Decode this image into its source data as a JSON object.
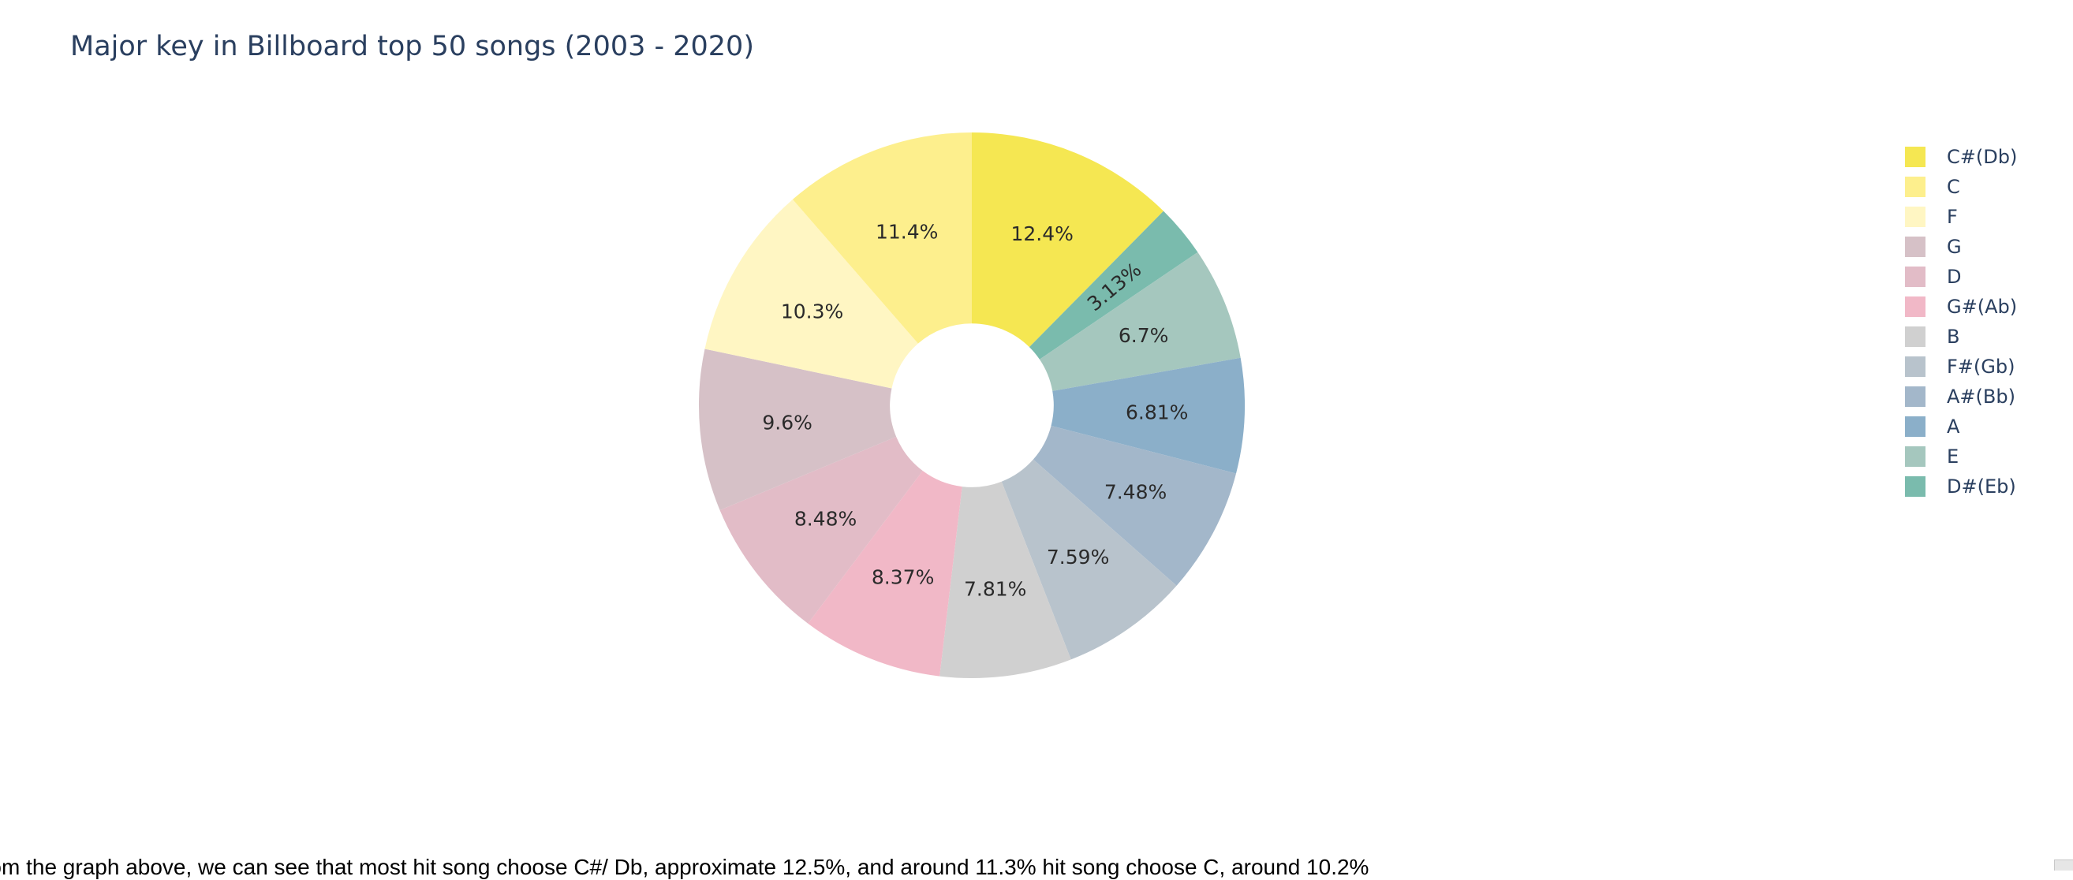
{
  "chart_data": {
    "type": "pie",
    "title": "Major key in Billboard top 50 songs (2003 - 2020)",
    "hole": 0.3,
    "legend_position": "right",
    "slices": [
      {
        "label": "C#(Db)",
        "value": 12.4,
        "text": "12.4%",
        "color": "#f5e752"
      },
      {
        "label": "D#(Eb)",
        "value": 3.13,
        "text": "3.13%",
        "color": "#7abbad"
      },
      {
        "label": "E",
        "value": 6.7,
        "text": "6.7%",
        "color": "#a5c7be"
      },
      {
        "label": "A",
        "value": 6.81,
        "text": "6.81%",
        "color": "#8bafc9"
      },
      {
        "label": "A#(Bb)",
        "value": 7.48,
        "text": "7.48%",
        "color": "#a3b7ca"
      },
      {
        "label": "F#(Gb)",
        "value": 7.59,
        "text": "7.59%",
        "color": "#b8c3cc"
      },
      {
        "label": "B",
        "value": 7.81,
        "text": "7.81%",
        "color": "#d0d0d0"
      },
      {
        "label": "G#(Ab)",
        "value": 8.37,
        "text": "8.37%",
        "color": "#f1b8c7"
      },
      {
        "label": "D",
        "value": 8.48,
        "text": "8.48%",
        "color": "#e2bcc7"
      },
      {
        "label": "G",
        "value": 9.6,
        "text": "9.6%",
        "color": "#d6c1c7"
      },
      {
        "label": "F",
        "value": 10.3,
        "text": "10.3%",
        "color": "#fff6c3"
      },
      {
        "label": "C",
        "value": 11.4,
        "text": "11.4%",
        "color": "#fdef8d"
      }
    ],
    "legend": [
      {
        "label": "C#(Db)",
        "color": "#f5e752"
      },
      {
        "label": "C",
        "color": "#fdef8d"
      },
      {
        "label": "F",
        "color": "#fff6c3"
      },
      {
        "label": "G",
        "color": "#d6c1c7"
      },
      {
        "label": "D",
        "color": "#e2bcc7"
      },
      {
        "label": "G#(Ab)",
        "color": "#f1b8c7"
      },
      {
        "label": "B",
        "color": "#d0d0d0"
      },
      {
        "label": "F#(Gb)",
        "color": "#b8c3cc"
      },
      {
        "label": "A#(Bb)",
        "color": "#a3b7ca"
      },
      {
        "label": "A",
        "color": "#8bafc9"
      },
      {
        "label": "E",
        "color": "#a5c7be"
      },
      {
        "label": "D#(Eb)",
        "color": "#7abbad"
      }
    ]
  },
  "caption": "From the graph above, we can see that most hit song choose C#/ Db, approximate 12.5%, and around 11.3% hit song choose C, around 10.2%"
}
